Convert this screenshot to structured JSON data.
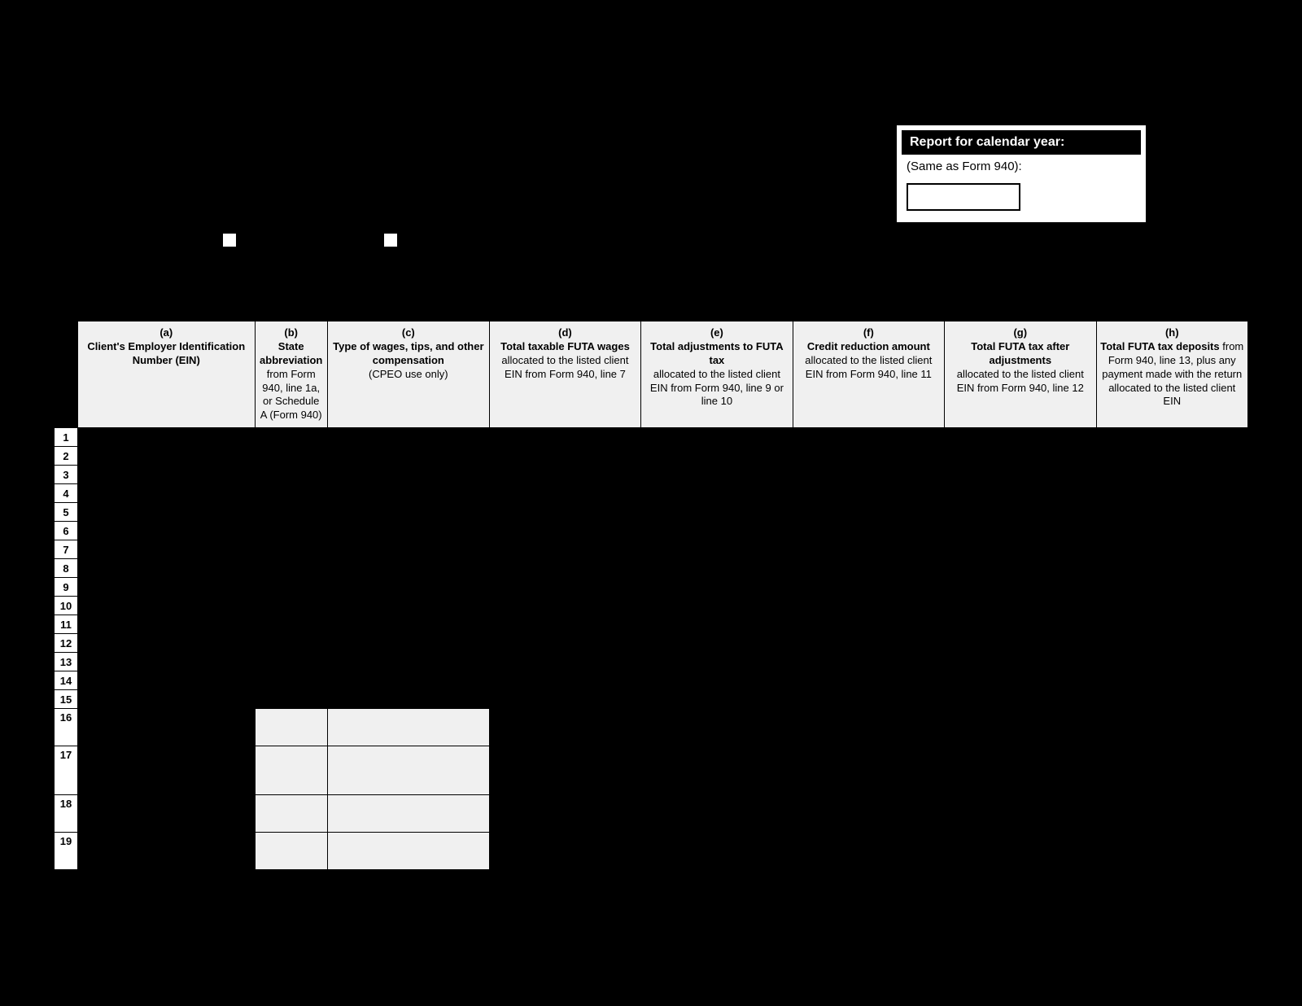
{
  "report_box": {
    "title": "Report for calendar year:",
    "subtitle": "(Same as Form 940):"
  },
  "columns": [
    {
      "letter": "(a)",
      "title": "Client's Employer Identification Number (EIN)",
      "sub": ""
    },
    {
      "letter": "(b)",
      "title": "State abbreviation",
      "sub": "from Form 940, line 1a, or Schedule A (Form 940)"
    },
    {
      "letter": "(c)",
      "title": "Type of wages, tips, and other compensation",
      "sub": "(CPEO use only)"
    },
    {
      "letter": "(d)",
      "title": "Total taxable FUTA wages",
      "sub": "allocated to the listed client EIN from Form 940, line 7"
    },
    {
      "letter": "(e)",
      "title": "Total adjustments to FUTA tax",
      "sub": "allocated to the listed client EIN from Form 940, line 9 or line 10"
    },
    {
      "letter": "(f)",
      "title": "Credit reduction amount",
      "sub": "allocated to the listed client EIN from Form 940, line 11"
    },
    {
      "letter": "(g)",
      "title": "Total FUTA tax after adjustments",
      "sub": "allocated to the listed client EIN from Form 940, line 12"
    },
    {
      "letter": "(h)",
      "title": "Total FUTA tax deposits",
      "sub": "from Form 940, line 13, plus any payment made with the return allocated to the listed client EIN"
    }
  ],
  "row_numbers": [
    "1",
    "2",
    "3",
    "4",
    "5",
    "6",
    "7",
    "8",
    "9",
    "10",
    "11",
    "12",
    "13",
    "14",
    "15"
  ],
  "summary_rows": [
    "16",
    "17",
    "18",
    "19"
  ],
  "col_widths": [
    "167",
    "83",
    "192",
    "180",
    "180",
    "180",
    "180",
    "180"
  ],
  "colors": {
    "background": "#000000",
    "header_bg": "#f0f0f0",
    "white": "#ffffff"
  }
}
